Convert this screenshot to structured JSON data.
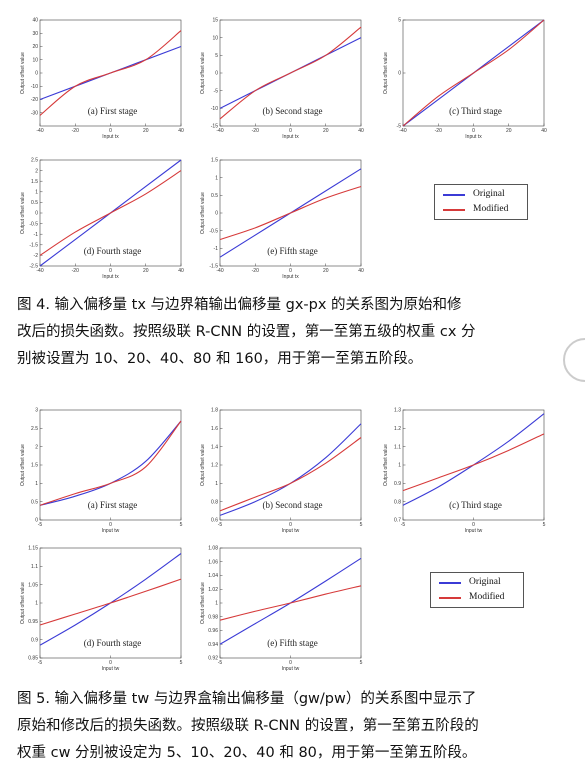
{
  "figure4": {
    "subplots": [
      {
        "caption": "(a) First stage",
        "ylabel": "Output offset value",
        "xlabel": "Input tx",
        "xticks": [
          "-40",
          "-20",
          "0",
          "20",
          "40"
        ],
        "yticks": [
          "-30",
          "-20",
          "-10",
          "0",
          "10",
          "20",
          "30",
          "40"
        ]
      },
      {
        "caption": "(b) Second stage",
        "ylabel": "Output offset value",
        "xlabel": "Input tx",
        "xticks": [
          "-40",
          "-20",
          "0",
          "20",
          "40"
        ],
        "yticks": [
          "-15",
          "-10",
          "-5",
          "0",
          "5",
          "10",
          "15"
        ]
      },
      {
        "caption": "(c) Third stage",
        "ylabel": "Output offset value",
        "xlabel": "Input tx",
        "xticks": [
          "-40",
          "-20",
          "0",
          "20",
          "40"
        ],
        "yticks": [
          "-5",
          "0",
          "5"
        ]
      },
      {
        "caption": "(d) Fourth stage",
        "ylabel": "Output offset value",
        "xlabel": "Input tx",
        "xticks": [
          "-40",
          "-20",
          "0",
          "20",
          "40"
        ],
        "yticks": [
          "-2.5",
          "-2",
          "-1.5",
          "-1",
          "-0.5",
          "0",
          "0.5",
          "1",
          "1.5",
          "2",
          "2.5"
        ]
      },
      {
        "caption": "(e) Fifth stage",
        "ylabel": "Output offset value",
        "xlabel": "Input tx",
        "xticks": [
          "-40",
          "-20",
          "0",
          "20",
          "40"
        ],
        "yticks": [
          "-1.5",
          "-1",
          "-0.5",
          "0",
          "0.5",
          "1",
          "1.5"
        ]
      }
    ],
    "legend": {
      "original": "Original",
      "modified": "Modified"
    },
    "caption_lines": [
      "图 4.  输入偏移量 tx 与边界箱输出偏移量 gx-px 的关系图为原始和修",
      "改后的损失函数。按照级联 R-CNN 的设置，第一至第五级的权重 cx 分",
      "别被设置为 10、20、40、80 和 160，用于第一至第五阶段。"
    ]
  },
  "figure5": {
    "subplots": [
      {
        "caption": "(a) First stage",
        "ylabel": "Output offset value",
        "xlabel": "Input tw",
        "xticks": [
          "-5",
          "0",
          "5"
        ],
        "yticks": [
          "0",
          "0.5",
          "1",
          "1.5",
          "2",
          "2.5",
          "3"
        ]
      },
      {
        "caption": "(b) Second stage",
        "ylabel": "Output offset value",
        "xlabel": "Input tw",
        "xticks": [
          "-5",
          "0",
          "5"
        ],
        "yticks": [
          "0.6",
          "0.8",
          "1",
          "1.2",
          "1.4",
          "1.6",
          "1.8"
        ]
      },
      {
        "caption": "(c) Third stage",
        "ylabel": "Output offset value",
        "xlabel": "Input tw",
        "xticks": [
          "-5",
          "0",
          "5"
        ],
        "yticks": [
          "0.7",
          "0.8",
          "0.9",
          "1",
          "1.1",
          "1.2",
          "1.3"
        ]
      },
      {
        "caption": "(d) Fourth stage",
        "ylabel": "Output offset value",
        "xlabel": "Input tw",
        "xticks": [
          "-5",
          "0",
          "5"
        ],
        "yticks": [
          "0.85",
          "0.9",
          "0.95",
          "1",
          "1.05",
          "1.1",
          "1.15"
        ]
      },
      {
        "caption": "(e) Fifth stage",
        "ylabel": "Output offset value",
        "xlabel": "Input tw",
        "xticks": [
          "-5",
          "0",
          "5"
        ],
        "yticks": [
          "0.92",
          "0.94",
          "0.96",
          "0.98",
          "1",
          "1.02",
          "1.04",
          "1.06",
          "1.08"
        ]
      }
    ],
    "legend": {
      "original": "Original",
      "modified": "Modified"
    },
    "caption_lines": [
      "图 5.  输入偏移量 tw 与边界盒输出偏移量（gw/pw）的关系图中显示了",
      "原始和修改后的损失函数。按照级联 R-CNN 的设置，第一至第五阶段的",
      "权重 cw 分别被设定为 5、10、20、40 和 80，用于第一至第五阶段。"
    ]
  },
  "colors": {
    "original": "#3b3bd6",
    "modified": "#d63a3a",
    "axis": "#444444"
  },
  "chart_data": [
    {
      "type": "line",
      "title": "(a) First stage",
      "xlabel": "Input tx",
      "ylabel": "Output offset value",
      "xlim": [
        -40,
        40
      ],
      "ylim": [
        -40,
        40
      ],
      "series": [
        {
          "name": "Original",
          "x": [
            -40,
            0,
            40
          ],
          "y": [
            -20,
            0,
            20
          ]
        },
        {
          "name": "Modified",
          "x": [
            -40,
            -20,
            0,
            20,
            40
          ],
          "y": [
            -32,
            -10,
            0,
            10,
            32
          ]
        }
      ]
    },
    {
      "type": "line",
      "title": "(b) Second stage",
      "xlabel": "Input tx",
      "ylabel": "Output offset value",
      "xlim": [
        -40,
        40
      ],
      "ylim": [
        -15,
        15
      ],
      "series": [
        {
          "name": "Original",
          "x": [
            -40,
            0,
            40
          ],
          "y": [
            -10,
            0,
            10
          ]
        },
        {
          "name": "Modified",
          "x": [
            -40,
            -20,
            0,
            20,
            40
          ],
          "y": [
            -13,
            -5,
            0,
            5,
            13
          ]
        }
      ]
    },
    {
      "type": "line",
      "title": "(c) Third stage",
      "xlabel": "Input tx",
      "ylabel": "Output offset value",
      "xlim": [
        -40,
        40
      ],
      "ylim": [
        -5,
        5
      ],
      "series": [
        {
          "name": "Original",
          "x": [
            -40,
            0,
            40
          ],
          "y": [
            -5,
            0,
            5
          ]
        },
        {
          "name": "Modified",
          "x": [
            -40,
            -20,
            0,
            20,
            40
          ],
          "y": [
            -5,
            -2.2,
            0,
            2.2,
            5
          ]
        }
      ]
    },
    {
      "type": "line",
      "title": "(d) Fourth stage",
      "xlabel": "Input tx",
      "ylabel": "Output offset value",
      "xlim": [
        -40,
        40
      ],
      "ylim": [
        -2.5,
        2.5
      ],
      "series": [
        {
          "name": "Original",
          "x": [
            -40,
            0,
            40
          ],
          "y": [
            -2.5,
            0,
            2.5
          ]
        },
        {
          "name": "Modified",
          "x": [
            -40,
            -20,
            0,
            20,
            40
          ],
          "y": [
            -2,
            -0.9,
            0,
            0.9,
            2
          ]
        }
      ]
    },
    {
      "type": "line",
      "title": "(e) Fifth stage",
      "xlabel": "Input tx",
      "ylabel": "Output offset value",
      "xlim": [
        -40,
        40
      ],
      "ylim": [
        -1.5,
        1.5
      ],
      "series": [
        {
          "name": "Original",
          "x": [
            -40,
            0,
            40
          ],
          "y": [
            -1.25,
            0,
            1.25
          ]
        },
        {
          "name": "Modified",
          "x": [
            -40,
            -20,
            0,
            20,
            40
          ],
          "y": [
            -0.75,
            -0.42,
            0,
            0.42,
            0.75
          ]
        }
      ]
    },
    {
      "type": "line",
      "title": "(a) First stage",
      "xlabel": "Input tw",
      "ylabel": "Output offset value",
      "xlim": [
        -5,
        5
      ],
      "ylim": [
        0,
        3
      ],
      "series": [
        {
          "name": "Original",
          "x": [
            -5,
            -2.5,
            0,
            2.5,
            5
          ],
          "y": [
            0.4,
            0.65,
            1.0,
            1.6,
            2.7
          ]
        },
        {
          "name": "Modified",
          "x": [
            -5,
            -2.5,
            0,
            2.5,
            5
          ],
          "y": [
            0.4,
            0.72,
            1.0,
            1.45,
            2.7
          ]
        }
      ]
    },
    {
      "type": "line",
      "title": "(b) Second stage",
      "xlabel": "Input tw",
      "ylabel": "Output offset value",
      "xlim": [
        -5,
        5
      ],
      "ylim": [
        0.6,
        1.8
      ],
      "series": [
        {
          "name": "Original",
          "x": [
            -5,
            -2.5,
            0,
            2.5,
            5
          ],
          "y": [
            0.65,
            0.8,
            1.0,
            1.28,
            1.65
          ]
        },
        {
          "name": "Modified",
          "x": [
            -5,
            -2.5,
            0,
            2.5,
            5
          ],
          "y": [
            0.7,
            0.85,
            1.0,
            1.22,
            1.5
          ]
        }
      ]
    },
    {
      "type": "line",
      "title": "(c) Third stage",
      "xlabel": "Input tw",
      "ylabel": "Output offset value",
      "xlim": [
        -5,
        5
      ],
      "ylim": [
        0.7,
        1.3
      ],
      "series": [
        {
          "name": "Original",
          "x": [
            -5,
            -2.5,
            0,
            2.5,
            5
          ],
          "y": [
            0.78,
            0.88,
            1.0,
            1.13,
            1.28
          ]
        },
        {
          "name": "Modified",
          "x": [
            -5,
            -2.5,
            0,
            2.5,
            5
          ],
          "y": [
            0.86,
            0.93,
            1.0,
            1.08,
            1.17
          ]
        }
      ]
    },
    {
      "type": "line",
      "title": "(d) Fourth stage",
      "xlabel": "Input tw",
      "ylabel": "Output offset value",
      "xlim": [
        -5,
        5
      ],
      "ylim": [
        0.85,
        1.15
      ],
      "series": [
        {
          "name": "Original",
          "x": [
            -5,
            -2.5,
            0,
            2.5,
            5
          ],
          "y": [
            0.885,
            0.94,
            1.0,
            1.065,
            1.135
          ]
        },
        {
          "name": "Modified",
          "x": [
            -5,
            -2.5,
            0,
            2.5,
            5
          ],
          "y": [
            0.94,
            0.97,
            1.0,
            1.032,
            1.065
          ]
        }
      ]
    },
    {
      "type": "line",
      "title": "(e) Fifth stage",
      "xlabel": "Input tw",
      "ylabel": "Output offset value",
      "xlim": [
        -5,
        5
      ],
      "ylim": [
        0.92,
        1.08
      ],
      "series": [
        {
          "name": "Original",
          "x": [
            -5,
            -2.5,
            0,
            2.5,
            5
          ],
          "y": [
            0.94,
            0.97,
            1.0,
            1.032,
            1.065
          ]
        },
        {
          "name": "Modified",
          "x": [
            -5,
            -2.5,
            0,
            2.5,
            5
          ],
          "y": [
            0.975,
            0.988,
            1.0,
            1.013,
            1.025
          ]
        }
      ]
    }
  ]
}
